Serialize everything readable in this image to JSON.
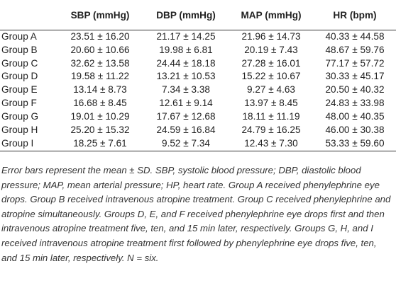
{
  "table": {
    "headers": [
      "",
      "SBP (mmHg)",
      "DBP (mmHg)",
      "MAP (mmHg)",
      "HR (bpm)"
    ],
    "rows": [
      [
        "Group A",
        "23.51 ± 16.20",
        "21.17 ± 14.25",
        "21.96 ± 14.73",
        "40.33 ± 44.58"
      ],
      [
        "Group B",
        "20.60 ± 10.66",
        "19.98 ± 6.81",
        "20.19 ± 7.43",
        "48.67 ± 59.76"
      ],
      [
        "Group C",
        "32.62 ± 13.58",
        "24.44 ± 18.18",
        "27.28 ± 16.01",
        "77.17 ± 57.72"
      ],
      [
        "Group D",
        "19.58 ± 11.22",
        "13.21 ± 10.53",
        "15.22 ± 10.67",
        "30.33 ± 45.17"
      ],
      [
        "Group E",
        "13.14 ± 8.73",
        "7.34 ± 3.38",
        "9.27 ± 4.63",
        "20.50 ± 40.32"
      ],
      [
        "Group F",
        "16.68 ± 8.45",
        "12.61 ± 9.14",
        "13.97 ± 8.45",
        "24.83 ± 33.98"
      ],
      [
        "Group G",
        "19.01 ± 10.29",
        "17.67 ± 12.68",
        "18.11 ± 11.19",
        "48.00 ± 40.35"
      ],
      [
        "Group H",
        "25.20 ± 15.32",
        "24.59 ± 16.84",
        "24.79 ± 16.25",
        "46.00 ± 30.38"
      ],
      [
        "Group I",
        "18.25 ± 7.61",
        "9.52 ± 7.34",
        "12.43 ± 7.30",
        "53.33 ± 59.60"
      ]
    ]
  },
  "footnote": "Error bars represent the mean ± SD. SBP, systolic blood pressure; DBP, diastolic blood pressure; MAP, mean arterial pressure; HP, heart rate. Group A received phenylephrine eye drops. Group B received intravenous atropine treatment. Group C received phenylephrine and atropine simultaneously. Groups D, E, and F received phenylephrine eye drops first and then intravenous atropine treatment five, ten, and 15 min later, respectively. Groups G, H, and I received intravenous atropine treatment first followed by phenylephrine eye drops five, ten, and 15 min later, respectively. N = six."
}
